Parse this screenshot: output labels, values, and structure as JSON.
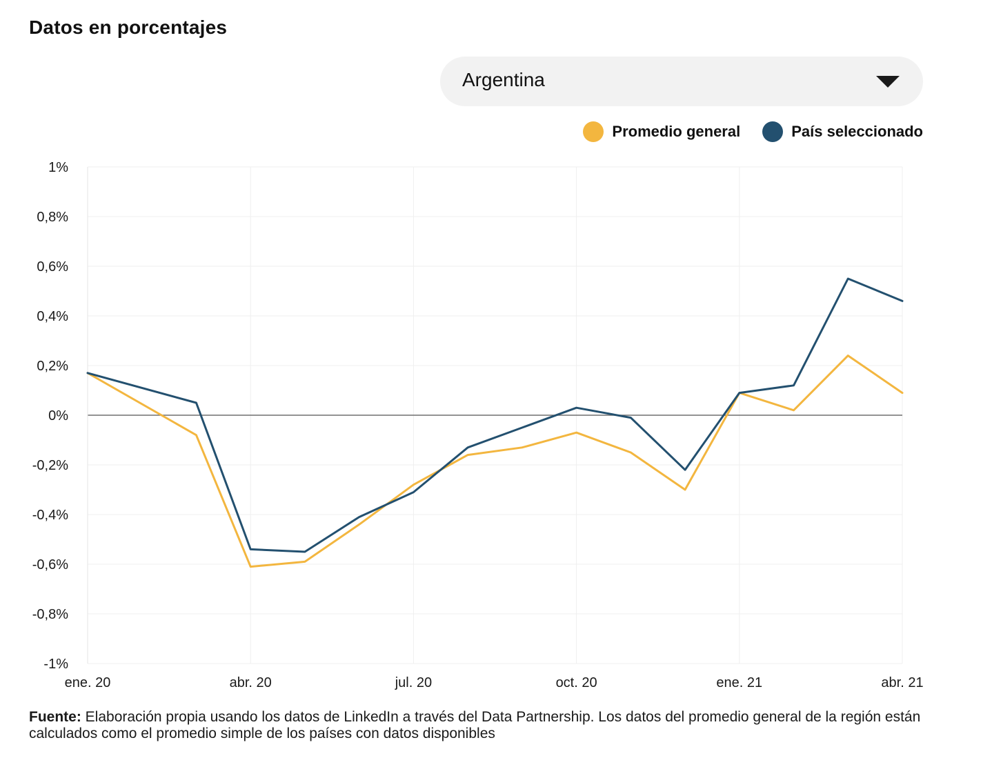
{
  "header": {
    "title": "Datos en porcentajes"
  },
  "selector": {
    "value": "Argentina",
    "icon": "chevron-down-icon"
  },
  "legend": {
    "items": [
      {
        "label": "Promedio general",
        "color": "#f3b63f"
      },
      {
        "label": "País seleccionado",
        "color": "#23506f"
      }
    ]
  },
  "chart_data": {
    "type": "line",
    "title": "",
    "xlabel": "",
    "ylabel": "",
    "ylim": [
      -1,
      1
    ],
    "grid": true,
    "x": [
      "2020-01",
      "2020-02",
      "2020-03",
      "2020-04",
      "2020-05",
      "2020-06",
      "2020-07",
      "2020-08",
      "2020-09",
      "2020-10",
      "2020-11",
      "2020-12",
      "2021-01",
      "2021-02",
      "2021-03",
      "2021-04"
    ],
    "x_ticks": [
      "ene. 20",
      "abr. 20",
      "jul. 20",
      "oct. 20",
      "ene. 21",
      "abr. 21"
    ],
    "y_ticks": [
      "1%",
      "0,8%",
      "0,6%",
      "0,4%",
      "0,2%",
      "0%",
      "-0,2%",
      "-0,4%",
      "-0,6%",
      "-0,8%",
      "-1%"
    ],
    "y_tick_values": [
      1,
      0.8,
      0.6,
      0.4,
      0.2,
      0,
      -0.2,
      -0.4,
      -0.6,
      -0.8,
      -1
    ],
    "series": [
      {
        "name": "Promedio general",
        "color": "#f3b63f",
        "values": [
          0.17,
          null,
          -0.08,
          -0.61,
          -0.59,
          -0.44,
          -0.28,
          -0.16,
          -0.13,
          -0.07,
          -0.15,
          -0.3,
          0.09,
          0.02,
          0.24,
          0.09
        ]
      },
      {
        "name": "País seleccionado",
        "color": "#23506f",
        "values": [
          0.17,
          null,
          0.05,
          -0.54,
          -0.55,
          -0.41,
          -0.31,
          -0.13,
          -0.05,
          0.03,
          -0.01,
          -0.22,
          0.09,
          0.12,
          0.55,
          0.46
        ]
      }
    ]
  },
  "source": {
    "label": "Fuente:",
    "text": " Elaboración propia usando los datos de LinkedIn a través del Data Partnership. Los datos del promedio general de la región están calculados como el promedio simple de los países con datos disponibles"
  }
}
